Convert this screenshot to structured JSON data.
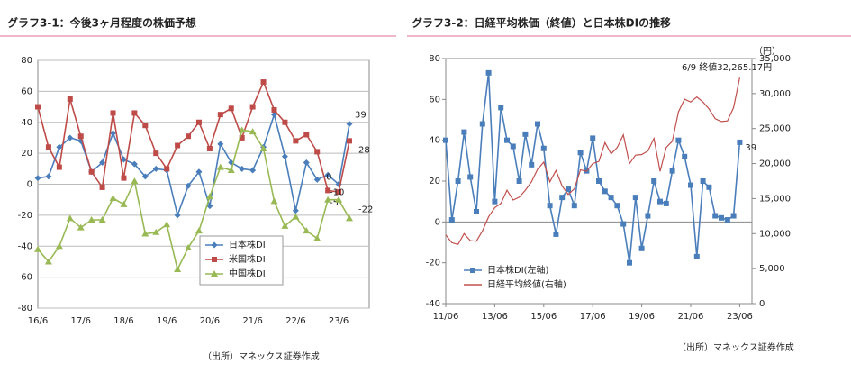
{
  "chart_data": [
    {
      "type": "line",
      "title": "グラフ3-1：今後3ヶ月程度の株価予想",
      "source": "（出所）マネックス証券作成",
      "grid": true,
      "legend": "lower-center",
      "categories": [
        "16/6",
        null,
        null,
        null,
        "17/6",
        null,
        null,
        null,
        "18/6",
        null,
        null,
        null,
        "19/6",
        null,
        null,
        null,
        "20/6",
        null,
        null,
        null,
        "21/6",
        null,
        null,
        null,
        "22/6",
        null,
        null,
        null,
        "23/6",
        null
      ],
      "ylim": [
        -80,
        80
      ],
      "yticks": [
        -80,
        -60,
        -40,
        -20,
        0,
        20,
        40,
        60,
        80
      ],
      "series": [
        {
          "name": "日本株DI",
          "color": "#4a7ebb",
          "marker": "diamond",
          "values": [
            4,
            5,
            24,
            30,
            28,
            8,
            14,
            33,
            16,
            13,
            5,
            10,
            9,
            -20,
            -1,
            8,
            -14,
            26,
            14,
            10,
            9,
            24,
            45,
            18,
            -17,
            14,
            3,
            6,
            0,
            39
          ]
        },
        {
          "name": "米国株DI",
          "color": "#be4b48",
          "marker": "square",
          "values": [
            50,
            24,
            11,
            55,
            31,
            8,
            -2,
            46,
            4,
            46,
            38,
            20,
            10,
            25,
            31,
            40,
            23,
            45,
            49,
            30,
            50,
            66,
            48,
            40,
            28,
            32,
            21,
            -4,
            -5,
            28
          ]
        },
        {
          "name": "中国株DI",
          "color": "#98b954",
          "marker": "triangle",
          "values": [
            -42,
            -50,
            -40,
            -22,
            -28,
            -23,
            -23,
            -9,
            -13,
            2,
            -32,
            -31,
            -26,
            -55,
            -41,
            -30,
            -8,
            11,
            9,
            35,
            34,
            23,
            -11,
            -27,
            -21,
            -30,
            -35,
            -10,
            -10,
            -22
          ]
        }
      ]
    },
    {
      "type": "line",
      "title": "グラフ3-2：日経平均株価（終値）と日本株DIの推移",
      "source": "（出所）マネックス証券作成",
      "grid": false,
      "legend": "lower-left",
      "annotation": "6/9 終値32,265.17円",
      "y2label": "（円）",
      "x": [
        2011.5,
        2011.75,
        2012,
        2012.25,
        2012.5,
        2012.75,
        2013,
        2013.25,
        2013.5,
        2013.75,
        2014,
        2014.25,
        2014.5,
        2014.75,
        2015,
        2015.25,
        2015.5,
        2015.75,
        2016,
        2016.25,
        2016.5,
        2016.75,
        2017,
        2017.25,
        2017.5,
        2017.75,
        2018,
        2018.25,
        2018.5,
        2018.75,
        2019,
        2019.25,
        2019.5,
        2019.75,
        2020,
        2020.25,
        2020.5,
        2020.75,
        2021,
        2021.25,
        2021.5,
        2021.75,
        2022,
        2022.25,
        2022.5,
        2022.75,
        2023,
        2023.25,
        2023.5
      ],
      "xlim": [
        2011.5,
        2024
      ],
      "xticks": [
        {
          "value": 2011.5,
          "label": "11/06"
        },
        {
          "value": 2013.5,
          "label": "13/06"
        },
        {
          "value": 2015.5,
          "label": "15/06"
        },
        {
          "value": 2017.5,
          "label": "17/06"
        },
        {
          "value": 2019.5,
          "label": "19/06"
        },
        {
          "value": 2021.5,
          "label": "21/06"
        },
        {
          "value": 2023.5,
          "label": "23/06"
        }
      ],
      "ylim": [
        -40,
        80
      ],
      "yticks": [
        -40,
        -20,
        0,
        20,
        40,
        60,
        80
      ],
      "y2lim": [
        0,
        35000
      ],
      "y2ticks": [
        0,
        {
          "value": 5000,
          "label": "5,000"
        },
        {
          "value": 10000,
          "label": "10,000"
        },
        {
          "value": 15000,
          "label": "15,000"
        },
        {
          "value": 20000,
          "label": "20,000"
        },
        {
          "value": 25000,
          "label": "25,000"
        },
        {
          "value": 30000,
          "label": "30,000"
        },
        {
          "value": 35000,
          "label": "35,000"
        }
      ],
      "series": [
        {
          "name": "日本株DI(左軸)",
          "color": "#4a7ebb",
          "marker": "square",
          "values": [
            40,
            1,
            20,
            44,
            22,
            5,
            48,
            73,
            10,
            56,
            40,
            37,
            20,
            43,
            28,
            48,
            36,
            8,
            -6,
            12,
            16,
            8,
            34,
            25,
            41,
            20,
            15,
            12,
            8,
            -1,
            -20,
            12,
            -13,
            3,
            20,
            10,
            9,
            25,
            40,
            32,
            18,
            -17,
            20,
            17,
            3,
            2,
            1,
            3,
            39
          ]
        },
        {
          "name": "日経平均終値(右軸)",
          "color": "#c0504d",
          "marker": "none",
          "axis": "y2",
          "values": [
            9800,
            8700,
            8450,
            10000,
            9000,
            8900,
            10400,
            12400,
            13700,
            14300,
            16200,
            14800,
            15200,
            16200,
            17400,
            19200,
            20200,
            17400,
            19000,
            16800,
            15600,
            16400,
            19100,
            18900,
            20000,
            20300,
            23000,
            21400,
            22300,
            24100,
            20000,
            21200,
            21300,
            21800,
            23600,
            18900,
            22300,
            23200,
            27400,
            29200,
            28800,
            29500,
            28800,
            27800,
            26400,
            26000,
            26100,
            28000,
            32265.17
          ]
        }
      ]
    }
  ]
}
